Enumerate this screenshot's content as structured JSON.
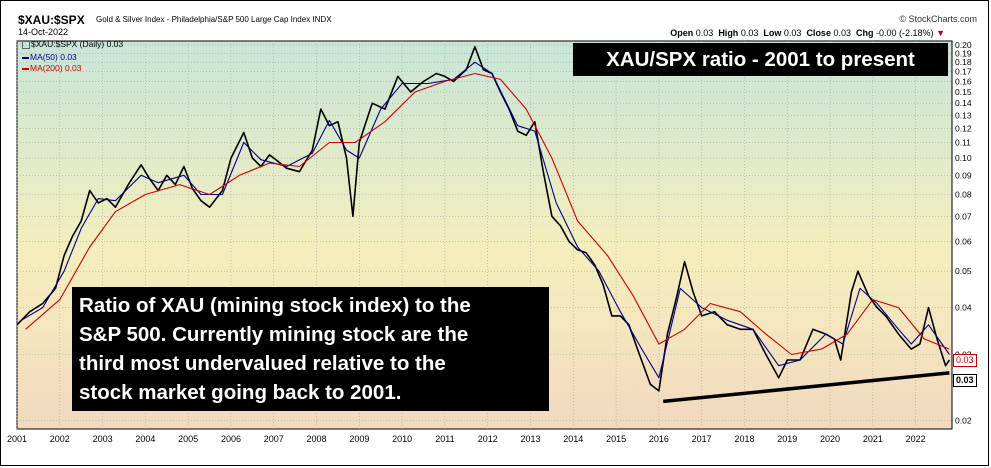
{
  "header": {
    "symbol": "$XAU:$SPX",
    "index_name": "Gold & Silver Index - Philadelphia/S&P 500 Large Cap Index  INDX",
    "date": "14-Oct-2022",
    "copyright": "© StockCharts.com",
    "ohlc": {
      "open_label": "Open",
      "open": "0.03",
      "high_label": "High",
      "high": "0.03",
      "low_label": "Low",
      "low": "0.03",
      "close_label": "Close",
      "close": "0.03",
      "chg_label": "Chg",
      "chg": "-0.00 (-2.18%)",
      "chg_marker": "▼"
    }
  },
  "legend": {
    "main": "$XAU:$SPX (Daily) 0.03",
    "ma50": "MA(50) 0.03",
    "ma200": "MA(200) 0.03"
  },
  "annotations": {
    "title": "XAU/SPX ratio - 2001 to present",
    "note_lines": [
      "Ratio of XAU (mining stock index) to the",
      "S&P 500. Currently mining stock are the",
      "third most undervalued relative to the",
      "stock market going back to 2001."
    ]
  },
  "last_value_labels": {
    "ma200": "0.03",
    "close": "0.03"
  },
  "colors": {
    "price": "#000000",
    "ma50": "#00008b",
    "ma200": "#cc0000",
    "trendline": "#000000",
    "bg_top": "#c8e6d8",
    "bg_mid": "#f5eebc",
    "bg_bottom": "#f2d9c0"
  },
  "chart_data": {
    "type": "line",
    "scale": "log",
    "ylim": [
      0.019,
      0.205
    ],
    "xlim": [
      2001.0,
      2022.85
    ],
    "x_tick_labels": [
      "2001",
      "2002",
      "2003",
      "2004",
      "2005",
      "2006",
      "2007",
      "2008",
      "2009",
      "2010",
      "2011",
      "2012",
      "2013",
      "2014",
      "2015",
      "2016",
      "2017",
      "2018",
      "2019",
      "2020",
      "2021",
      "2022"
    ],
    "y_tick_labels": [
      "0.20",
      "0.19",
      "0.18",
      "0.17",
      "0.16",
      "0.15",
      "0.14",
      "0.13",
      "0.12",
      "0.11",
      "0.10",
      "0.09",
      "0.08",
      "0.07",
      "0.06",
      "0.05",
      "0.04",
      "0.03",
      "0.02"
    ],
    "grid": true,
    "series": [
      {
        "name": "$XAU:$SPX (Daily)",
        "points": [
          [
            2001.0,
            0.036
          ],
          [
            2001.3,
            0.039
          ],
          [
            2001.6,
            0.041
          ],
          [
            2001.9,
            0.045
          ],
          [
            2002.1,
            0.055
          ],
          [
            2002.3,
            0.062
          ],
          [
            2002.5,
            0.068
          ],
          [
            2002.7,
            0.082
          ],
          [
            2002.9,
            0.076
          ],
          [
            2003.1,
            0.078
          ],
          [
            2003.3,
            0.074
          ],
          [
            2003.6,
            0.085
          ],
          [
            2003.9,
            0.096
          ],
          [
            2004.1,
            0.088
          ],
          [
            2004.3,
            0.082
          ],
          [
            2004.5,
            0.09
          ],
          [
            2004.7,
            0.085
          ],
          [
            2004.9,
            0.095
          ],
          [
            2005.1,
            0.083
          ],
          [
            2005.3,
            0.077
          ],
          [
            2005.5,
            0.074
          ],
          [
            2005.8,
            0.082
          ],
          [
            2006.0,
            0.1
          ],
          [
            2006.3,
            0.117
          ],
          [
            2006.5,
            0.1
          ],
          [
            2006.7,
            0.095
          ],
          [
            2006.9,
            0.102
          ],
          [
            2007.1,
            0.098
          ],
          [
            2007.3,
            0.094
          ],
          [
            2007.6,
            0.092
          ],
          [
            2007.9,
            0.105
          ],
          [
            2008.1,
            0.135
          ],
          [
            2008.3,
            0.122
          ],
          [
            2008.5,
            0.125
          ],
          [
            2008.7,
            0.1
          ],
          [
            2008.85,
            0.07
          ],
          [
            2009.0,
            0.11
          ],
          [
            2009.3,
            0.14
          ],
          [
            2009.6,
            0.135
          ],
          [
            2009.9,
            0.165
          ],
          [
            2010.2,
            0.15
          ],
          [
            2010.5,
            0.16
          ],
          [
            2010.8,
            0.168
          ],
          [
            2011.0,
            0.165
          ],
          [
            2011.2,
            0.16
          ],
          [
            2011.5,
            0.172
          ],
          [
            2011.7,
            0.198
          ],
          [
            2011.9,
            0.172
          ],
          [
            2012.1,
            0.168
          ],
          [
            2012.3,
            0.15
          ],
          [
            2012.5,
            0.135
          ],
          [
            2012.7,
            0.118
          ],
          [
            2012.9,
            0.115
          ],
          [
            2013.1,
            0.125
          ],
          [
            2013.3,
            0.092
          ],
          [
            2013.5,
            0.07
          ],
          [
            2013.7,
            0.066
          ],
          [
            2013.9,
            0.06
          ],
          [
            2014.1,
            0.057
          ],
          [
            2014.3,
            0.056
          ],
          [
            2014.5,
            0.052
          ],
          [
            2014.7,
            0.046
          ],
          [
            2014.9,
            0.038
          ],
          [
            2015.1,
            0.038
          ],
          [
            2015.3,
            0.036
          ],
          [
            2015.5,
            0.031
          ],
          [
            2015.8,
            0.025
          ],
          [
            2016.0,
            0.024
          ],
          [
            2016.2,
            0.034
          ],
          [
            2016.4,
            0.042
          ],
          [
            2016.6,
            0.053
          ],
          [
            2016.8,
            0.044
          ],
          [
            2017.0,
            0.038
          ],
          [
            2017.3,
            0.039
          ],
          [
            2017.6,
            0.036
          ],
          [
            2017.9,
            0.035
          ],
          [
            2018.2,
            0.035
          ],
          [
            2018.5,
            0.03
          ],
          [
            2018.8,
            0.026
          ],
          [
            2019.0,
            0.029
          ],
          [
            2019.3,
            0.029
          ],
          [
            2019.6,
            0.035
          ],
          [
            2019.9,
            0.034
          ],
          [
            2020.1,
            0.033
          ],
          [
            2020.25,
            0.029
          ],
          [
            2020.5,
            0.044
          ],
          [
            2020.65,
            0.05
          ],
          [
            2020.9,
            0.043
          ],
          [
            2021.1,
            0.04
          ],
          [
            2021.3,
            0.038
          ],
          [
            2021.6,
            0.034
          ],
          [
            2021.9,
            0.031
          ],
          [
            2022.1,
            0.032
          ],
          [
            2022.3,
            0.04
          ],
          [
            2022.5,
            0.033
          ],
          [
            2022.7,
            0.028
          ],
          [
            2022.79,
            0.029
          ]
        ]
      },
      {
        "name": "MA(50)",
        "points": [
          [
            2001.1,
            0.037
          ],
          [
            2001.6,
            0.04
          ],
          [
            2002.1,
            0.05
          ],
          [
            2002.5,
            0.065
          ],
          [
            2002.9,
            0.078
          ],
          [
            2003.3,
            0.077
          ],
          [
            2003.9,
            0.09
          ],
          [
            2004.3,
            0.086
          ],
          [
            2004.9,
            0.09
          ],
          [
            2005.3,
            0.08
          ],
          [
            2005.8,
            0.08
          ],
          [
            2006.3,
            0.11
          ],
          [
            2006.7,
            0.099
          ],
          [
            2007.3,
            0.095
          ],
          [
            2007.9,
            0.103
          ],
          [
            2008.3,
            0.126
          ],
          [
            2008.7,
            0.105
          ],
          [
            2009.0,
            0.1
          ],
          [
            2009.5,
            0.135
          ],
          [
            2010.0,
            0.158
          ],
          [
            2010.6,
            0.158
          ],
          [
            2011.2,
            0.162
          ],
          [
            2011.7,
            0.18
          ],
          [
            2012.1,
            0.168
          ],
          [
            2012.7,
            0.122
          ],
          [
            2013.1,
            0.118
          ],
          [
            2013.6,
            0.076
          ],
          [
            2014.1,
            0.058
          ],
          [
            2014.6,
            0.05
          ],
          [
            2015.1,
            0.039
          ],
          [
            2015.6,
            0.031
          ],
          [
            2016.0,
            0.026
          ],
          [
            2016.5,
            0.045
          ],
          [
            2017.0,
            0.04
          ],
          [
            2017.6,
            0.037
          ],
          [
            2018.2,
            0.035
          ],
          [
            2018.8,
            0.028
          ],
          [
            2019.3,
            0.029
          ],
          [
            2019.9,
            0.034
          ],
          [
            2020.3,
            0.032
          ],
          [
            2020.7,
            0.045
          ],
          [
            2021.1,
            0.041
          ],
          [
            2021.6,
            0.035
          ],
          [
            2021.9,
            0.032
          ],
          [
            2022.3,
            0.036
          ],
          [
            2022.79,
            0.03
          ]
        ]
      },
      {
        "name": "MA(200)",
        "points": [
          [
            2001.2,
            0.035
          ],
          [
            2002.0,
            0.042
          ],
          [
            2002.7,
            0.058
          ],
          [
            2003.3,
            0.072
          ],
          [
            2004.0,
            0.08
          ],
          [
            2004.8,
            0.085
          ],
          [
            2005.5,
            0.08
          ],
          [
            2006.2,
            0.09
          ],
          [
            2006.9,
            0.097
          ],
          [
            2007.6,
            0.095
          ],
          [
            2008.3,
            0.11
          ],
          [
            2008.9,
            0.11
          ],
          [
            2009.6,
            0.125
          ],
          [
            2010.3,
            0.15
          ],
          [
            2011.0,
            0.16
          ],
          [
            2011.7,
            0.168
          ],
          [
            2012.3,
            0.162
          ],
          [
            2012.9,
            0.135
          ],
          [
            2013.5,
            0.1
          ],
          [
            2014.1,
            0.068
          ],
          [
            2014.8,
            0.055
          ],
          [
            2015.4,
            0.043
          ],
          [
            2016.0,
            0.032
          ],
          [
            2016.6,
            0.035
          ],
          [
            2017.2,
            0.041
          ],
          [
            2017.9,
            0.039
          ],
          [
            2018.5,
            0.034
          ],
          [
            2019.1,
            0.03
          ],
          [
            2019.8,
            0.031
          ],
          [
            2020.4,
            0.034
          ],
          [
            2021.0,
            0.042
          ],
          [
            2021.6,
            0.04
          ],
          [
            2022.2,
            0.033
          ],
          [
            2022.79,
            0.031
          ]
        ]
      },
      {
        "name": "Trendline",
        "points": [
          [
            2016.1,
            0.0225
          ],
          [
            2022.79,
            0.0268
          ]
        ]
      }
    ]
  }
}
